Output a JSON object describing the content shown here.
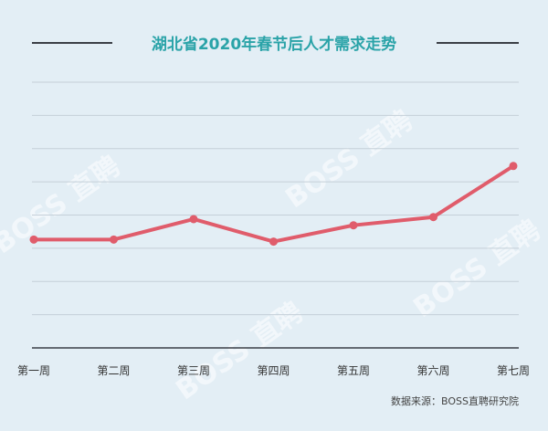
{
  "chart_data": {
    "type": "line",
    "title": "湖北省2020年春节后人才需求走势",
    "categories": [
      "第一周",
      "第二周",
      "第三周",
      "第四周",
      "第五周",
      "第六周",
      "第七周"
    ],
    "values": [
      53,
      53,
      63,
      52,
      60,
      64,
      89
    ],
    "ylim": [
      0,
      130
    ],
    "grid": true,
    "series_color": "#e05c6b",
    "source": "数据来源：BOSS直聘研究院"
  },
  "watermark_text": "BOSS 直聘"
}
